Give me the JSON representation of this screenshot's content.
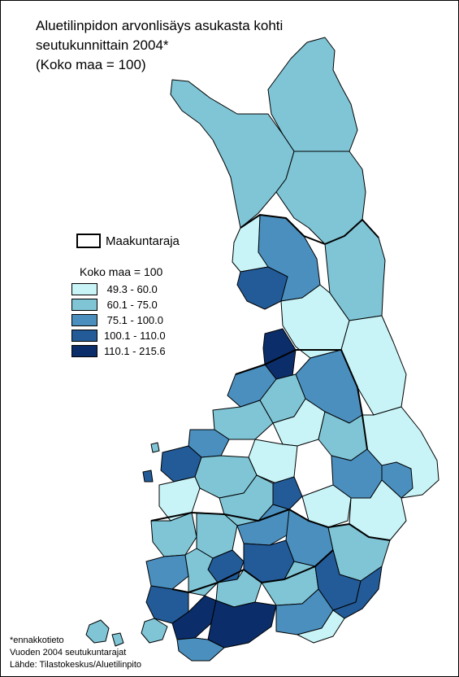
{
  "title": {
    "line1": "Aluetilinpidon arvonlisäys asukasta kohti",
    "line2": "seutukunnittain 2004*",
    "line3": "(Koko maa = 100)"
  },
  "boundary_legend": {
    "label": "Maakuntaraja"
  },
  "legend": {
    "title": "Koko maa = 100",
    "classes": [
      {
        "label": " 49.3 - 60.0",
        "color": "#c8f4f8"
      },
      {
        "label": " 60.1 - 75.0",
        "color": "#7fc5d6"
      },
      {
        "label": " 75.1 - 100.0",
        "color": "#4b8fbf"
      },
      {
        "label": "100.1 - 110.0",
        "color": "#235b98"
      },
      {
        "label": "110.1 - 215.6",
        "color": "#0b2d69"
      }
    ]
  },
  "notes": {
    "line1": "*ennakkotieto",
    "line2": "Vuoden 2004 seutukuntarajat",
    "line3": "Lähde: Tilastokeskus/Aluetilinpito"
  }
}
